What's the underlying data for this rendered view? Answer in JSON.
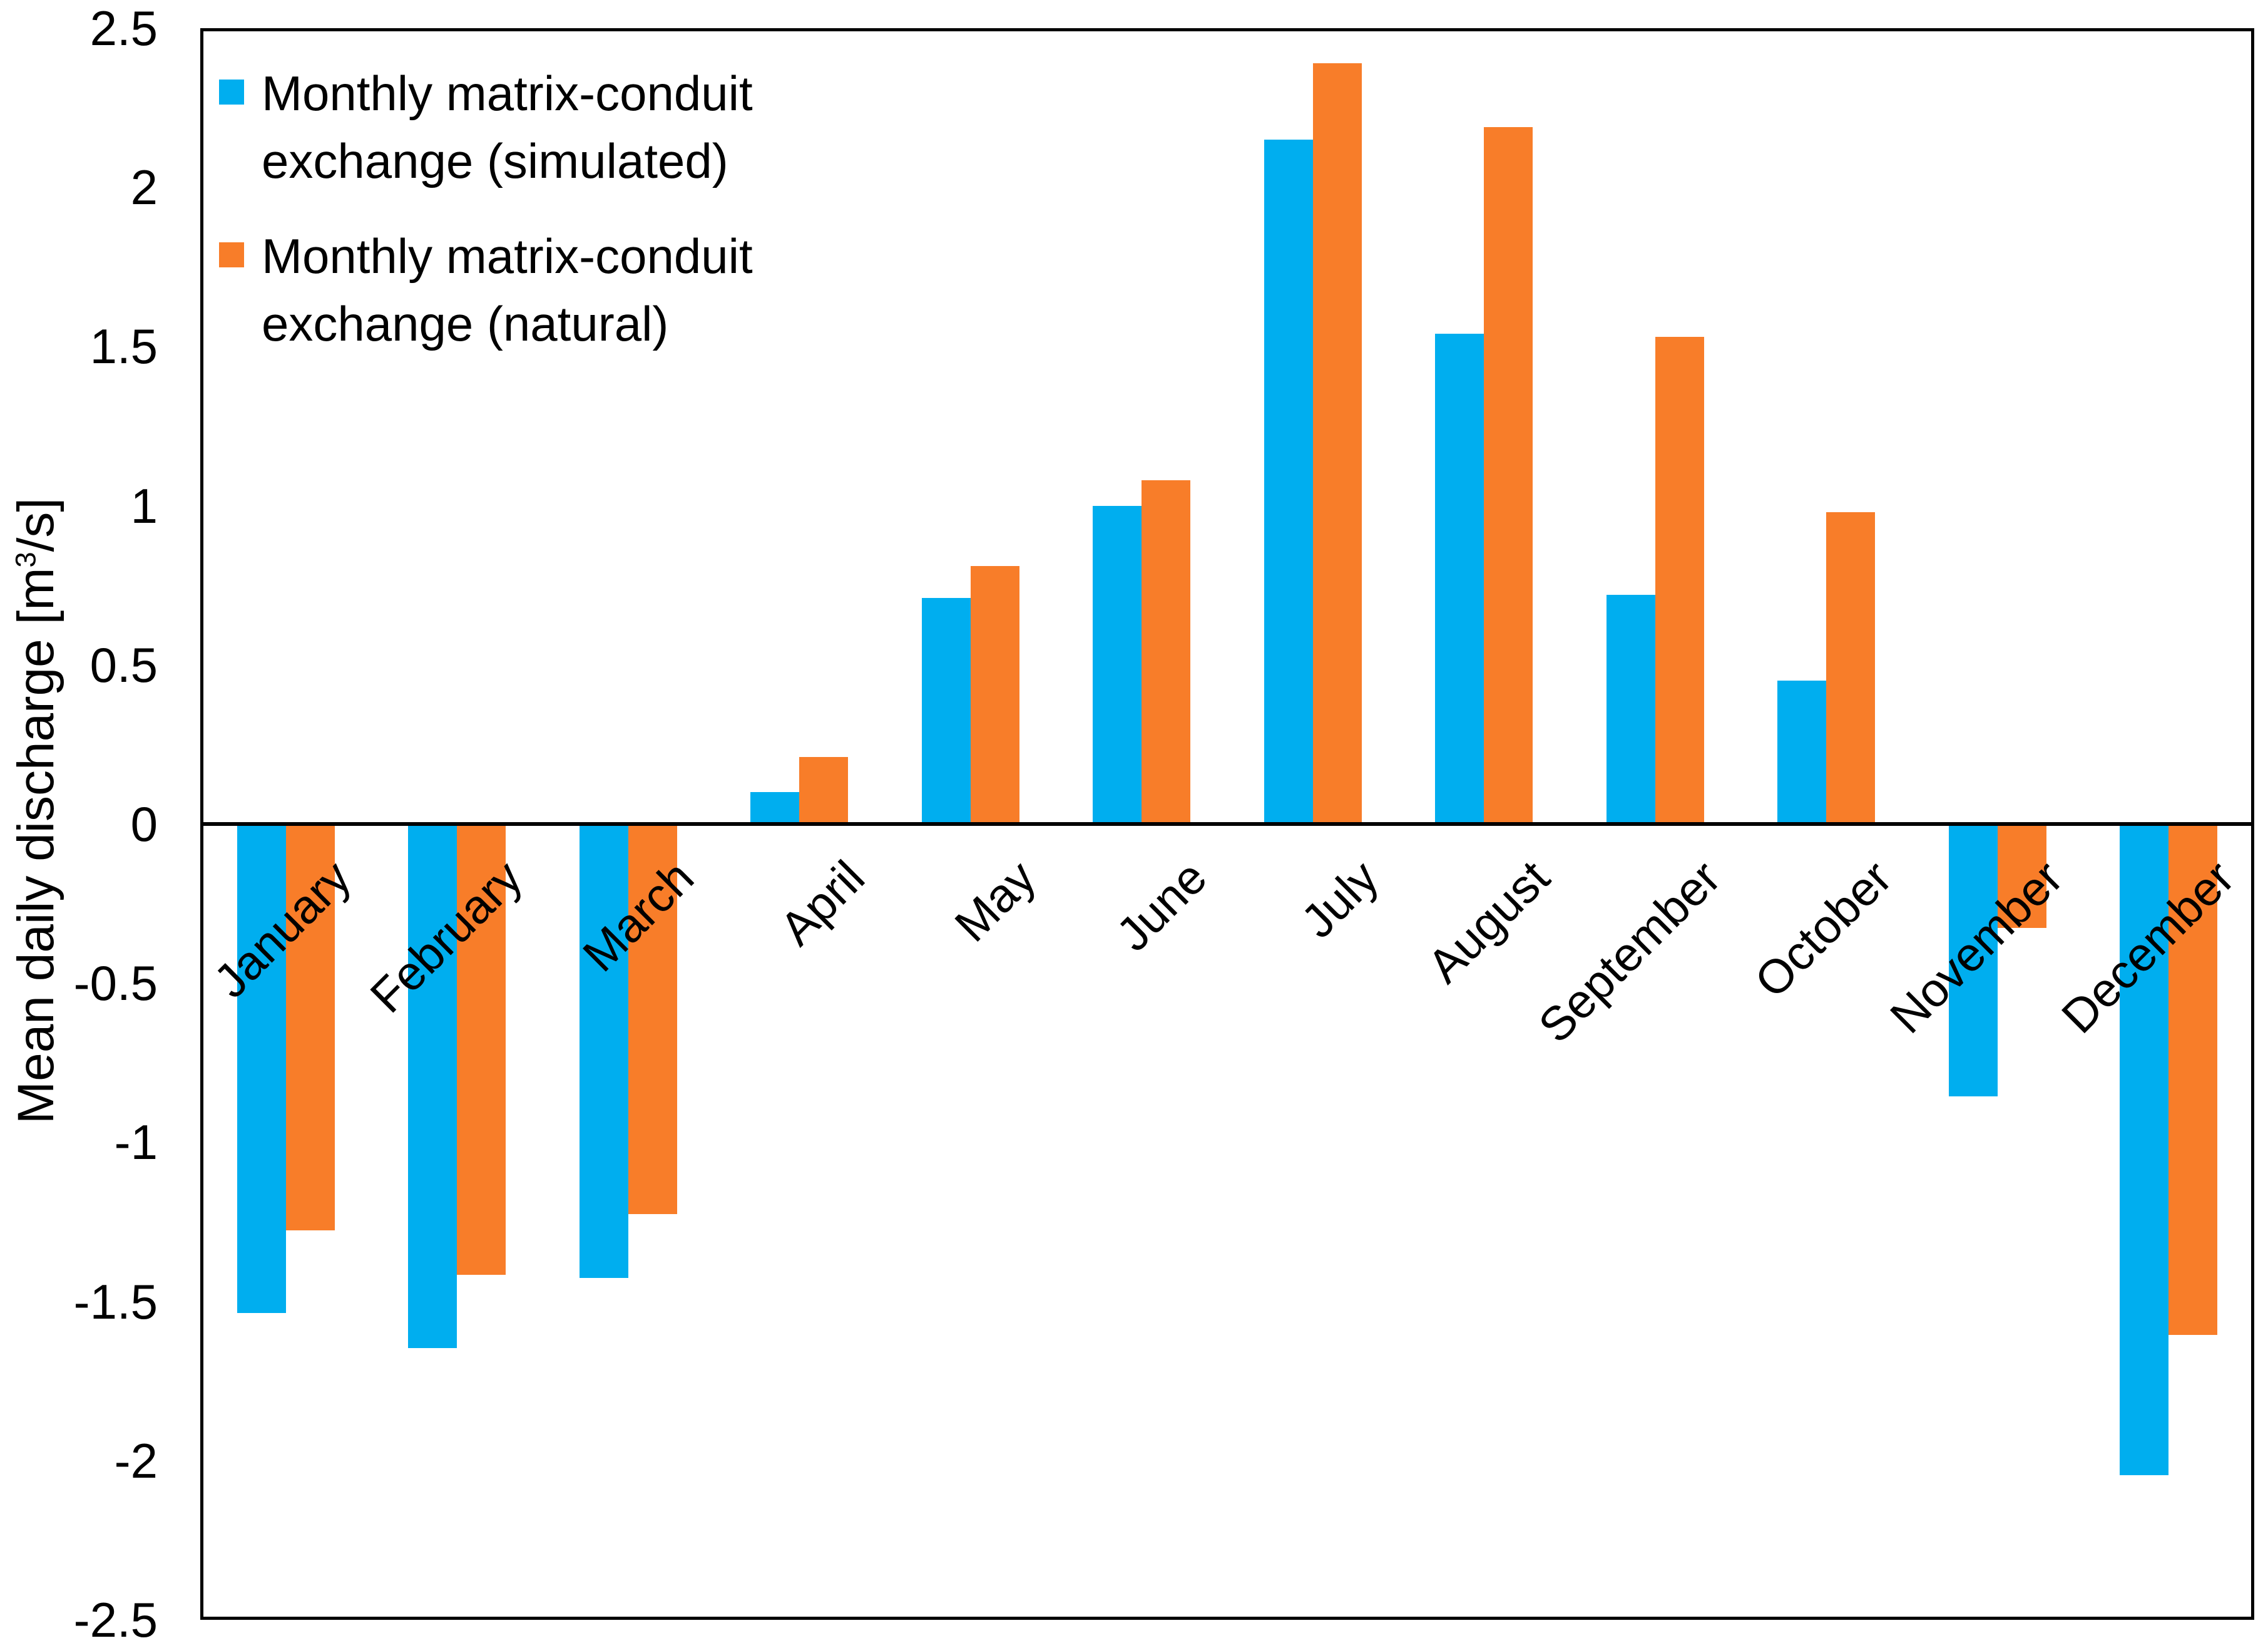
{
  "figure": {
    "background": "#ffffff",
    "axis_color": "#000000"
  },
  "legend": [
    {
      "label": "Monthly matrix-conduit exchange (simulated)",
      "color": "#00AEEF"
    },
    {
      "label": "Monthly matrix-conduit exchange (natural)",
      "color": "#F87D29"
    }
  ],
  "ylabel_parts": {
    "prefix": "Mean daily discharge [m",
    "sup": "3",
    "suffix": "/s]"
  },
  "chart_data": {
    "type": "bar",
    "title": "",
    "xlabel": "",
    "ylabel": "Mean daily discharge [m³/s]",
    "categories": [
      "January",
      "February",
      "March",
      "April",
      "May",
      "June",
      "July",
      "August",
      "September",
      "October",
      "November",
      "December"
    ],
    "series": [
      {
        "name": "Monthly matrix-conduit exchange (simulated)",
        "color": "#00AEEF",
        "values": [
          -1.53,
          -1.64,
          -1.42,
          0.1,
          0.71,
          1.0,
          2.15,
          1.54,
          0.72,
          0.45,
          -0.85,
          -2.04
        ]
      },
      {
        "name": "Monthly matrix-conduit exchange (natural)",
        "color": "#F87D29",
        "values": [
          -1.27,
          -1.41,
          -1.22,
          0.21,
          0.81,
          1.08,
          2.39,
          2.19,
          1.53,
          0.98,
          -0.32,
          -1.6
        ]
      }
    ],
    "ylim": [
      -2.5,
      2.5
    ],
    "yticks": [
      "2.5",
      "2",
      "1.5",
      "1",
      "0.5",
      "0",
      "-0.5",
      "-1",
      "-1.5",
      "-2",
      "-2.5"
    ],
    "grid": false,
    "legend_position": "top-left-inside",
    "category_label_rotation_deg": 45,
    "category_labels_at": "zero-axis"
  }
}
